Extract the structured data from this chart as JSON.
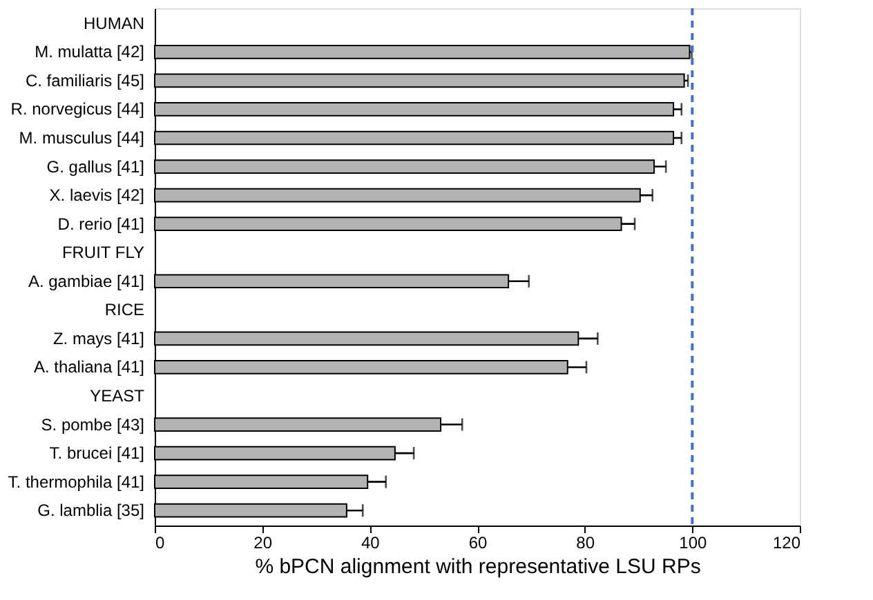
{
  "chart_data": {
    "type": "bar",
    "orientation": "horizontal",
    "xlabel": "% bPCN alignment with representative LSU RPs",
    "categories": [
      "HUMAN",
      "M. mulatta [42]",
      "C. familiaris [45]",
      "R. norvegicus [44]",
      "M. musculus [44]",
      "G. gallus [41]",
      "X. laevis [42]",
      "D. rerio [41]",
      "FRUIT FLY",
      "A. gambiae [41]",
      "RICE",
      "Z. mays [41]",
      "A. thaliana [41]",
      "YEAST",
      "S. pombe [43]",
      "T. brucei [41]",
      "T. thermophila [41]",
      "G. lamblia [35]"
    ],
    "values": [
      null,
      99.5,
      98.5,
      96.5,
      96.5,
      92.9,
      90.3,
      86.8,
      null,
      65.8,
      null,
      78.8,
      76.8,
      null,
      53.2,
      44.7,
      39.6,
      35.7
    ],
    "errors": [
      null,
      0.4,
      0.7,
      1.5,
      1.5,
      2.2,
      2.3,
      2.5,
      null,
      3.8,
      null,
      3.6,
      3.5,
      null,
      4.0,
      3.5,
      3.4,
      3.0
    ],
    "color": "#b3b3b3",
    "xlim": [
      0,
      120
    ],
    "xticks": [
      0,
      20,
      40,
      60,
      80,
      100,
      120
    ],
    "ref_lines": [
      {
        "axis": "x",
        "value": 100,
        "color": "#4472c4",
        "line_style": "dashed"
      }
    ],
    "grid": false
  }
}
